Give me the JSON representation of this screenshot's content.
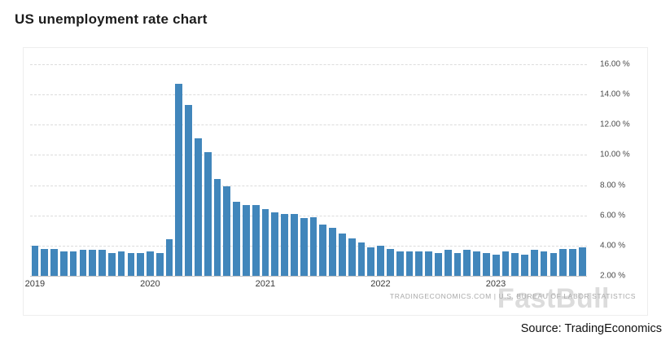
{
  "page": {
    "title": "US unemployment rate chart",
    "source": "Source: TradingEconomics"
  },
  "watermarks": {
    "attribution": "TRADINGECONOMICS.COM | U.S. BUREAU OF LABOR STATISTICS",
    "brand": "FastBull"
  },
  "chart_data": {
    "type": "bar",
    "title": "US unemployment rate chart",
    "xlabel": "",
    "ylabel": "",
    "ylim": [
      2,
      16
    ],
    "grid": "horizontal-dashed",
    "legend": "none",
    "bar_color": "#4186bb",
    "yticks": [
      {
        "value": 16,
        "label": "16.00 %"
      },
      {
        "value": 14,
        "label": "14.00 %"
      },
      {
        "value": 12,
        "label": "12.00 %"
      },
      {
        "value": 10,
        "label": "10.00 %"
      },
      {
        "value": 8,
        "label": "8.00 %"
      },
      {
        "value": 6,
        "label": "6.00 %"
      },
      {
        "value": 4,
        "label": "4.00 %"
      },
      {
        "value": 2,
        "label": "2.00 %"
      }
    ],
    "categories": [
      "2019-01",
      "2019-02",
      "2019-03",
      "2019-04",
      "2019-05",
      "2019-06",
      "2019-07",
      "2019-08",
      "2019-09",
      "2019-10",
      "2019-11",
      "2019-12",
      "2020-01",
      "2020-02",
      "2020-03",
      "2020-04",
      "2020-05",
      "2020-06",
      "2020-07",
      "2020-08",
      "2020-09",
      "2020-10",
      "2020-11",
      "2020-12",
      "2021-01",
      "2021-02",
      "2021-03",
      "2021-04",
      "2021-05",
      "2021-06",
      "2021-07",
      "2021-08",
      "2021-09",
      "2021-10",
      "2021-11",
      "2021-12",
      "2022-01",
      "2022-02",
      "2022-03",
      "2022-04",
      "2022-05",
      "2022-06",
      "2022-07",
      "2022-08",
      "2022-09",
      "2022-10",
      "2022-11",
      "2022-12",
      "2023-01",
      "2023-02",
      "2023-03",
      "2023-04",
      "2023-05",
      "2023-06",
      "2023-07",
      "2023-08",
      "2023-09",
      "2023-10"
    ],
    "values": [
      4.0,
      3.8,
      3.8,
      3.6,
      3.6,
      3.7,
      3.7,
      3.7,
      3.5,
      3.6,
      3.5,
      3.5,
      3.6,
      3.5,
      4.4,
      14.7,
      13.3,
      11.1,
      10.2,
      8.4,
      7.9,
      6.9,
      6.7,
      6.7,
      6.4,
      6.2,
      6.1,
      6.1,
      5.8,
      5.9,
      5.4,
      5.2,
      4.8,
      4.5,
      4.2,
      3.9,
      4.0,
      3.8,
      3.6,
      3.6,
      3.6,
      3.6,
      3.5,
      3.7,
      3.5,
      3.7,
      3.6,
      3.5,
      3.4,
      3.6,
      3.5,
      3.4,
      3.7,
      3.6,
      3.5,
      3.8,
      3.8,
      3.9
    ],
    "year_ticks": [
      {
        "label": "2019",
        "index": 0
      },
      {
        "label": "2020",
        "index": 12
      },
      {
        "label": "2021",
        "index": 24
      },
      {
        "label": "2022",
        "index": 36
      },
      {
        "label": "2023",
        "index": 48
      }
    ]
  }
}
